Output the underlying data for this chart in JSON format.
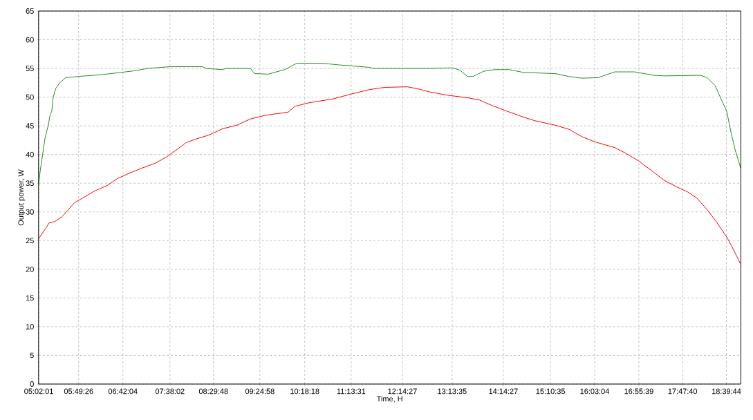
{
  "chart_data": {
    "type": "line",
    "xlabel": "Time, H",
    "ylabel": "Output power, W",
    "xlim": [
      5.03,
      18.95
    ],
    "ylim": [
      0,
      65
    ],
    "xticks": [
      {
        "value": 5.03361,
        "label": "05:02:01"
      },
      {
        "value": 5.82389,
        "label": "05:49:26"
      },
      {
        "value": 6.70111,
        "label": "06:42:04"
      },
      {
        "value": 7.63389,
        "label": "07:38:02"
      },
      {
        "value": 8.49667,
        "label": "08:29:48"
      },
      {
        "value": 9.41611,
        "label": "09:24:58"
      },
      {
        "value": 10.305,
        "label": "10:18:18"
      },
      {
        "value": 11.22528,
        "label": "11:13:31"
      },
      {
        "value": 12.24083,
        "label": "12:14:27"
      },
      {
        "value": 13.22639,
        "label": "13:13:35"
      },
      {
        "value": 14.24083,
        "label": "14:14:27"
      },
      {
        "value": 15.17639,
        "label": "15:10:35"
      },
      {
        "value": 16.05111,
        "label": "16:03:04"
      },
      {
        "value": 16.9275,
        "label": "16:55:39"
      },
      {
        "value": 17.79444,
        "label": "17:47:40"
      },
      {
        "value": 18.66222,
        "label": "18:39:44"
      }
    ],
    "yticks": [
      0,
      5,
      10,
      15,
      20,
      25,
      30,
      35,
      40,
      45,
      50,
      55,
      60,
      65
    ],
    "grid": true,
    "marker": "none",
    "line_style": "solid",
    "series": [
      {
        "color": "#228b22",
        "x": [
          5.03,
          5.06,
          5.11,
          5.16,
          5.22,
          5.26,
          5.29,
          5.32,
          5.37,
          5.45,
          5.57,
          5.82,
          6.26,
          6.66,
          6.94,
          7.19,
          7.63,
          8.28,
          8.35,
          8.67,
          8.75,
          9.23,
          9.31,
          9.58,
          9.91,
          10.15,
          10.65,
          11.0,
          11.58,
          11.66,
          12.78,
          13.23,
          13.38,
          13.53,
          13.64,
          13.85,
          14.07,
          14.36,
          14.64,
          15.27,
          15.54,
          15.8,
          16.12,
          16.45,
          16.84,
          17.23,
          17.43,
          18.15,
          18.28,
          18.44,
          18.54,
          18.67,
          18.75,
          18.83,
          18.95
        ],
        "values": [
          34.5,
          37,
          40,
          43,
          45,
          47,
          47.5,
          50,
          51.5,
          52.5,
          53.4,
          53.6,
          53.9,
          54.3,
          54.6,
          55,
          55.3,
          55.3,
          55,
          54.8,
          55,
          55,
          54.1,
          54,
          54.8,
          55.9,
          55.9,
          55.6,
          55.2,
          55,
          55,
          55.1,
          54.7,
          53.6,
          53.6,
          54.5,
          54.8,
          54.8,
          54.3,
          54.1,
          53.6,
          53.3,
          53.4,
          54.4,
          54.4,
          53.8,
          53.7,
          53.8,
          53.4,
          52,
          50,
          47.5,
          44,
          41,
          37.5
        ]
      },
      {
        "color": "#ff0000",
        "x": [
          5.03,
          5.16,
          5.24,
          5.35,
          5.5,
          5.61,
          5.74,
          5.94,
          6.13,
          6.39,
          6.59,
          6.79,
          7.07,
          7.35,
          7.57,
          7.76,
          7.96,
          8.15,
          8.41,
          8.68,
          8.96,
          9.23,
          9.51,
          9.98,
          10.11,
          10.38,
          10.87,
          11.21,
          11.58,
          11.89,
          12.34,
          12.57,
          12.78,
          13.16,
          13.53,
          13.77,
          14.0,
          14.3,
          14.58,
          14.86,
          15.27,
          15.54,
          15.8,
          16.06,
          16.45,
          16.65,
          16.92,
          17.18,
          17.43,
          17.69,
          17.89,
          18.08,
          18.28,
          18.47,
          18.67,
          18.77,
          18.94
        ],
        "values": [
          25.3,
          27,
          28.1,
          28.3,
          29.2,
          30.3,
          31.6,
          32.6,
          33.6,
          34.6,
          35.8,
          36.6,
          37.6,
          38.5,
          39.6,
          40.8,
          42.1,
          42.7,
          43.4,
          44.5,
          45.1,
          46.2,
          46.8,
          47.4,
          48.4,
          49,
          49.7,
          50.5,
          51.3,
          51.7,
          51.8,
          51.4,
          50.9,
          50.3,
          49.9,
          49.5,
          48.6,
          47.6,
          46.7,
          45.9,
          45.1,
          44.4,
          43.1,
          42.2,
          41.2,
          40.3,
          38.9,
          37.2,
          35.5,
          34.3,
          33.5,
          32.4,
          30.4,
          28.2,
          25.6,
          24,
          21
        ]
      }
    ]
  }
}
